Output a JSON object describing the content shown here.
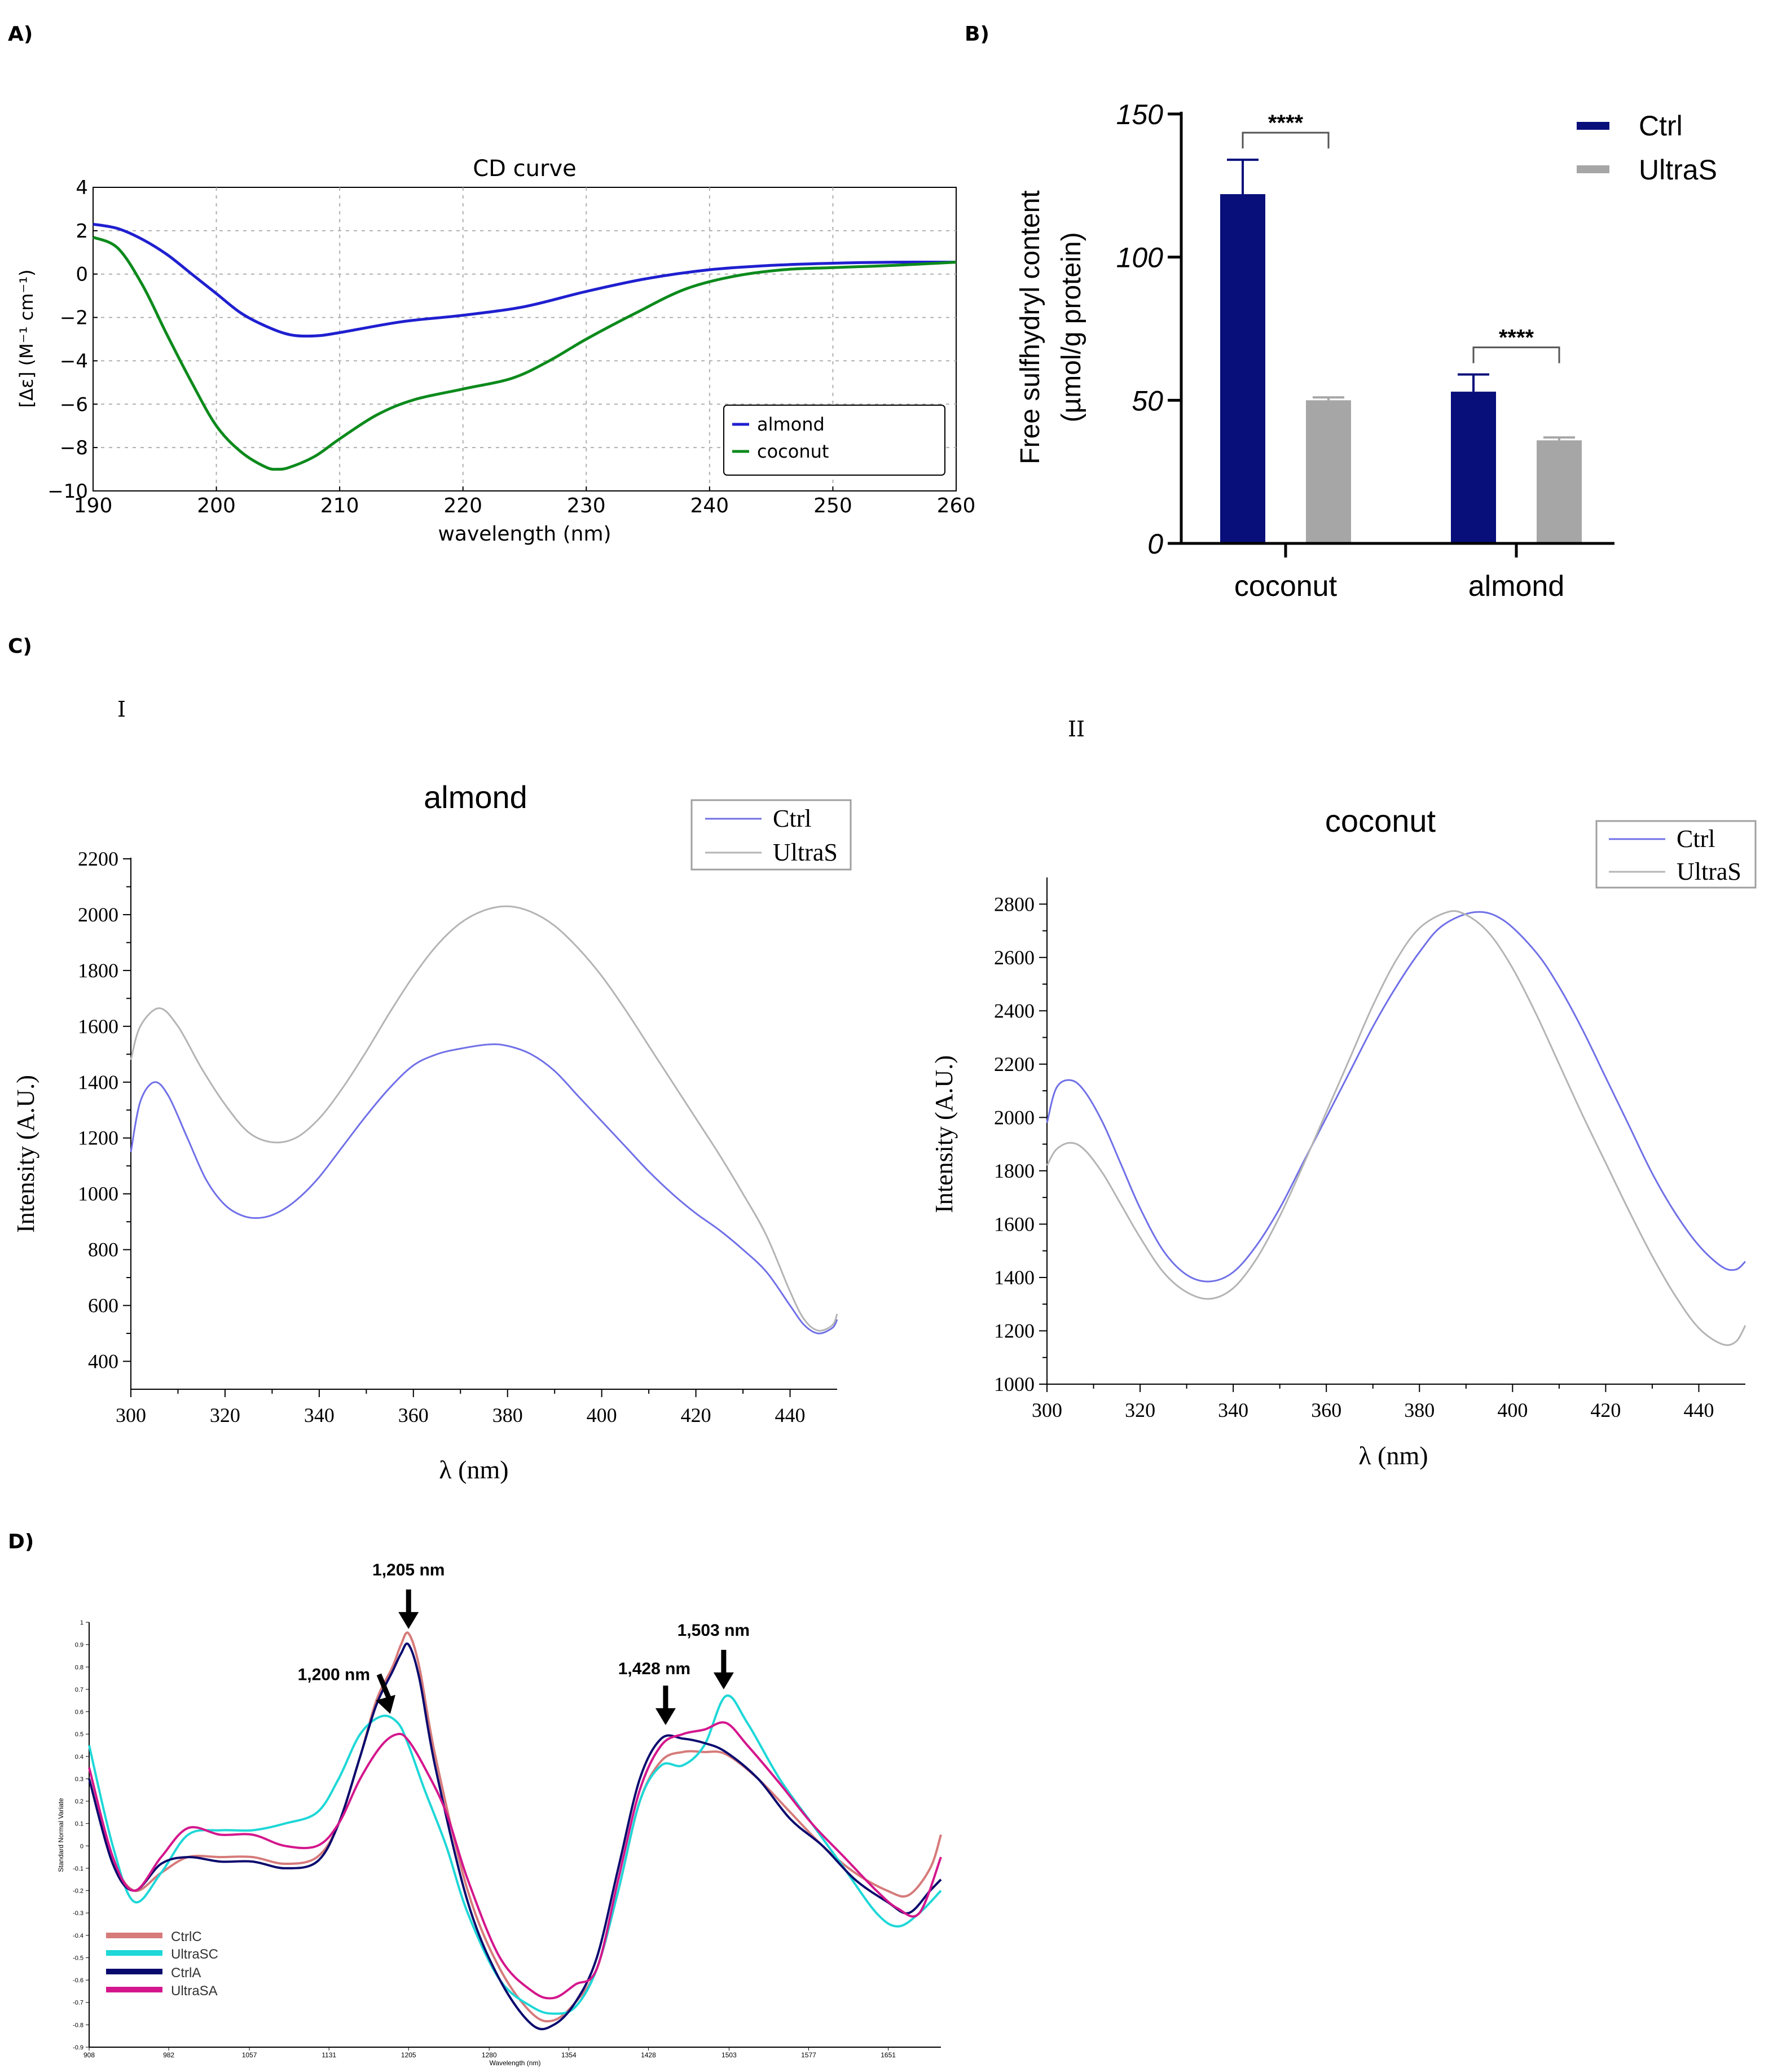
{
  "panel_labels": {
    "a": "A)",
    "b": "B)",
    "c": "C)",
    "d": "D)",
    "c1": "I",
    "c2": "II"
  },
  "chart_data": [
    {
      "id": "A",
      "type": "line",
      "title": "CD curve",
      "xlabel": "wavelength (nm)",
      "ylabel": "[Δε] (M⁻¹ cm⁻¹)",
      "xlim": [
        190,
        260
      ],
      "ylim": [
        -10,
        4
      ],
      "xticks": [
        190,
        200,
        210,
        220,
        230,
        240,
        250,
        260
      ],
      "yticks": [
        -10,
        -8,
        -6,
        -4,
        -2,
        0,
        2,
        4
      ],
      "ytick_labels": [
        "−10",
        "−8",
        "−6",
        "−4",
        "−2",
        "0",
        "2",
        "4"
      ],
      "grid": true,
      "legend": "lower-right",
      "series": [
        {
          "name": "almond",
          "color": "#1f1fd0",
          "x": [
            190,
            192,
            194,
            196,
            198,
            200,
            202,
            204,
            206,
            208,
            210,
            215,
            220,
            225,
            230,
            235,
            240,
            245,
            250,
            255,
            260
          ],
          "y": [
            2.3,
            2.1,
            1.6,
            0.9,
            0.0,
            -0.9,
            -1.8,
            -2.4,
            -2.8,
            -2.85,
            -2.7,
            -2.2,
            -1.9,
            -1.5,
            -0.8,
            -0.2,
            0.2,
            0.4,
            0.5,
            0.55,
            0.55
          ]
        },
        {
          "name": "coconut",
          "color": "#0c8a1c",
          "x": [
            190,
            192,
            194,
            196,
            198,
            200,
            202,
            204,
            205,
            206,
            208,
            210,
            213,
            216,
            220,
            224,
            227,
            230,
            234,
            238,
            242,
            246,
            250,
            255,
            260
          ],
          "y": [
            1.7,
            1.2,
            -0.5,
            -2.8,
            -5.0,
            -7.0,
            -8.2,
            -8.9,
            -9.0,
            -8.9,
            -8.4,
            -7.6,
            -6.5,
            -5.8,
            -5.3,
            -4.8,
            -4.0,
            -3.0,
            -1.8,
            -0.7,
            -0.1,
            0.2,
            0.3,
            0.4,
            0.55
          ]
        }
      ]
    },
    {
      "id": "B",
      "type": "bar",
      "categories": [
        "coconut",
        "almond"
      ],
      "ylabel_line1": "Free sulfhydryl content",
      "ylabel_line2": "(µmol/g protein)",
      "ylim": [
        0,
        150
      ],
      "yticks": [
        0,
        50,
        100,
        150
      ],
      "legend": "top-right",
      "series": [
        {
          "name": "Ctrl",
          "color": "#080e7a",
          "values": [
            122,
            53
          ],
          "errors": [
            12,
            6
          ]
        },
        {
          "name": "UltraS",
          "color": "#a6a6a6",
          "values": [
            50,
            36
          ],
          "errors": [
            1,
            1
          ]
        }
      ],
      "significance": [
        "****",
        "****"
      ]
    },
    {
      "id": "C-I",
      "type": "line",
      "title": "almond",
      "xlabel": "λ (nm)",
      "ylabel": "Intensity (A.U.)",
      "xlim": [
        300,
        450
      ],
      "ylim": [
        300,
        2200
      ],
      "xticks": [
        300,
        320,
        340,
        360,
        380,
        400,
        420,
        440
      ],
      "yticks": [
        400,
        600,
        800,
        1000,
        1200,
        1400,
        1600,
        1800,
        2000,
        2200
      ],
      "legend": "top-right",
      "series": [
        {
          "name": "Ctrl",
          "color": "#7070e8",
          "x": [
            300,
            302,
            305,
            308,
            312,
            316,
            320,
            324,
            328,
            332,
            336,
            340,
            345,
            350,
            355,
            360,
            365,
            370,
            376,
            380,
            385,
            390,
            395,
            400,
            405,
            410,
            415,
            420,
            425,
            430,
            435,
            440,
            443,
            446,
            449,
            450
          ],
          "y": [
            1150,
            1330,
            1400,
            1350,
            1200,
            1050,
            960,
            920,
            915,
            940,
            990,
            1060,
            1170,
            1280,
            1380,
            1460,
            1500,
            1520,
            1535,
            1530,
            1500,
            1440,
            1350,
            1260,
            1170,
            1080,
            1000,
            930,
            870,
            800,
            720,
            600,
            530,
            500,
            520,
            550
          ]
        },
        {
          "name": "UltraS",
          "color": "#b4b4b4",
          "x": [
            300,
            302,
            306,
            310,
            315,
            320,
            325,
            330,
            335,
            340,
            345,
            350,
            355,
            360,
            365,
            370,
            375,
            380,
            385,
            390,
            395,
            400,
            405,
            410,
            415,
            420,
            425,
            430,
            435,
            440,
            443,
            446,
            449,
            450
          ],
          "y": [
            1480,
            1600,
            1665,
            1600,
            1450,
            1320,
            1220,
            1185,
            1200,
            1270,
            1380,
            1510,
            1650,
            1780,
            1890,
            1970,
            2015,
            2030,
            2010,
            1960,
            1880,
            1780,
            1660,
            1530,
            1400,
            1270,
            1140,
            1000,
            850,
            650,
            550,
            510,
            530,
            570
          ]
        }
      ]
    },
    {
      "id": "C-II",
      "type": "line",
      "title": "coconut",
      "xlabel": "λ (nm)",
      "ylabel": "Intensity (A.U.)",
      "xlim": [
        300,
        450
      ],
      "ylim": [
        1000,
        2900
      ],
      "xticks": [
        300,
        320,
        340,
        360,
        380,
        400,
        420,
        440
      ],
      "yticks": [
        1000,
        1200,
        1400,
        1600,
        1800,
        2000,
        2200,
        2400,
        2600,
        2800
      ],
      "legend": "top-right",
      "series": [
        {
          "name": "Ctrl",
          "color": "#7070e8",
          "x": [
            300,
            302,
            305,
            308,
            312,
            316,
            320,
            325,
            330,
            335,
            340,
            345,
            350,
            355,
            360,
            365,
            370,
            375,
            380,
            385,
            392,
            398,
            405,
            410,
            415,
            420,
            425,
            430,
            435,
            440,
            445,
            448,
            450
          ],
          "y": [
            1980,
            2110,
            2140,
            2100,
            1980,
            1820,
            1660,
            1500,
            1410,
            1385,
            1420,
            1520,
            1660,
            1830,
            2000,
            2170,
            2340,
            2490,
            2620,
            2720,
            2770,
            2740,
            2620,
            2490,
            2330,
            2150,
            1970,
            1790,
            1640,
            1520,
            1440,
            1430,
            1460
          ]
        },
        {
          "name": "UltraS",
          "color": "#b4b4b4",
          "x": [
            300,
            302,
            305,
            308,
            312,
            316,
            320,
            325,
            330,
            335,
            340,
            345,
            350,
            355,
            360,
            365,
            370,
            375,
            380,
            386,
            390,
            395,
            400,
            405,
            410,
            415,
            420,
            425,
            430,
            435,
            440,
            445,
            448,
            450
          ],
          "y": [
            1820,
            1880,
            1905,
            1880,
            1790,
            1670,
            1550,
            1420,
            1345,
            1320,
            1360,
            1470,
            1630,
            1820,
            2020,
            2220,
            2420,
            2590,
            2710,
            2770,
            2760,
            2690,
            2560,
            2390,
            2200,
            2010,
            1830,
            1650,
            1480,
            1330,
            1210,
            1150,
            1160,
            1220
          ]
        }
      ]
    },
    {
      "id": "D",
      "type": "line",
      "xlabel": "Wavelength (nm)",
      "ylabel": "Standard Normal Variate",
      "xlim": [
        908,
        1700
      ],
      "ylim": [
        -0.9,
        1
      ],
      "xticks": [
        908,
        982,
        1057,
        1131,
        1205,
        1280,
        1354,
        1428,
        1503,
        1577,
        1651
      ],
      "yticks": [
        -0.9,
        -0.8,
        -0.7,
        -0.6,
        -0.5,
        -0.4,
        -0.3,
        -0.2,
        -0.1,
        0,
        0.1,
        0.2,
        0.3,
        0.4,
        0.5,
        0.6,
        0.7,
        0.8,
        0.9,
        1
      ],
      "legend": "lower-left",
      "annotations": [
        {
          "text": "1,200 nm",
          "x": 1188,
          "y": 0.57
        },
        {
          "text": "1,205 nm",
          "x": 1205,
          "y": 0.95
        },
        {
          "text": "1,428 nm",
          "x": 1444,
          "y": 0.52
        },
        {
          "text": "1,503 nm",
          "x": 1498,
          "y": 0.68
        }
      ],
      "series": [
        {
          "name": "CtrlC",
          "color": "#d67a7a",
          "x": [
            908,
            930,
            950,
            975,
            1000,
            1030,
            1060,
            1090,
            1120,
            1140,
            1160,
            1175,
            1190,
            1198,
            1205,
            1215,
            1230,
            1260,
            1290,
            1320,
            1340,
            1360,
            1380,
            1400,
            1420,
            1440,
            1460,
            1480,
            1500,
            1530,
            1560,
            1590,
            1620,
            1650,
            1670,
            1690,
            1700
          ],
          "y": [
            0.35,
            -0.05,
            -0.2,
            -0.12,
            -0.05,
            -0.05,
            -0.05,
            -0.08,
            -0.05,
            0.1,
            0.4,
            0.65,
            0.8,
            0.9,
            0.95,
            0.8,
            0.4,
            -0.2,
            -0.55,
            -0.75,
            -0.78,
            -0.7,
            -0.55,
            -0.2,
            0.2,
            0.38,
            0.42,
            0.42,
            0.41,
            0.3,
            0.15,
            0.0,
            -0.12,
            -0.2,
            -0.22,
            -0.1,
            0.05
          ]
        },
        {
          "name": "UltraSC",
          "color": "#1ed7d7",
          "x": [
            908,
            930,
            950,
            975,
            1000,
            1030,
            1060,
            1090,
            1120,
            1140,
            1160,
            1180,
            1195,
            1205,
            1220,
            1240,
            1260,
            1290,
            1320,
            1340,
            1360,
            1380,
            1400,
            1420,
            1440,
            1460,
            1480,
            1500,
            1520,
            1550,
            1580,
            1610,
            1640,
            1660,
            1680,
            1700
          ],
          "y": [
            0.45,
            0.0,
            -0.25,
            -0.12,
            0.05,
            0.07,
            0.07,
            0.1,
            0.15,
            0.3,
            0.5,
            0.58,
            0.55,
            0.45,
            0.25,
            0.0,
            -0.3,
            -0.6,
            -0.72,
            -0.75,
            -0.72,
            -0.55,
            -0.2,
            0.2,
            0.36,
            0.36,
            0.45,
            0.67,
            0.55,
            0.3,
            0.1,
            -0.1,
            -0.3,
            -0.36,
            -0.3,
            -0.2
          ]
        },
        {
          "name": "CtrlA",
          "color": "#0a0a6e",
          "x": [
            908,
            930,
            950,
            975,
            1000,
            1030,
            1060,
            1090,
            1120,
            1140,
            1160,
            1175,
            1190,
            1198,
            1205,
            1215,
            1230,
            1260,
            1290,
            1320,
            1340,
            1360,
            1380,
            1400,
            1420,
            1440,
            1460,
            1480,
            1500,
            1530,
            1560,
            1590,
            1620,
            1650,
            1670,
            1690,
            1700
          ],
          "y": [
            0.3,
            -0.08,
            -0.2,
            -0.08,
            -0.05,
            -0.07,
            -0.07,
            -0.1,
            -0.07,
            0.1,
            0.4,
            0.63,
            0.78,
            0.86,
            0.9,
            0.75,
            0.35,
            -0.25,
            -0.6,
            -0.8,
            -0.8,
            -0.7,
            -0.5,
            -0.1,
            0.3,
            0.48,
            0.48,
            0.46,
            0.42,
            0.3,
            0.12,
            0.0,
            -0.15,
            -0.25,
            -0.3,
            -0.2,
            -0.15
          ]
        },
        {
          "name": "UltraSA",
          "color": "#d4168c",
          "x": [
            908,
            930,
            950,
            975,
            1000,
            1030,
            1060,
            1090,
            1120,
            1140,
            1160,
            1180,
            1195,
            1205,
            1220,
            1240,
            1260,
            1290,
            1320,
            1340,
            1360,
            1380,
            1400,
            1420,
            1440,
            1460,
            1480,
            1500,
            1520,
            1550,
            1580,
            1610,
            1640,
            1660,
            1680,
            1700
          ],
          "y": [
            0.35,
            -0.05,
            -0.2,
            -0.05,
            0.08,
            0.05,
            0.05,
            0.0,
            0.0,
            0.1,
            0.3,
            0.45,
            0.5,
            0.47,
            0.35,
            0.15,
            -0.15,
            -0.5,
            -0.65,
            -0.68,
            -0.62,
            -0.55,
            -0.15,
            0.25,
            0.45,
            0.5,
            0.52,
            0.55,
            0.45,
            0.28,
            0.1,
            -0.05,
            -0.2,
            -0.28,
            -0.3,
            -0.05
          ]
        }
      ]
    }
  ]
}
